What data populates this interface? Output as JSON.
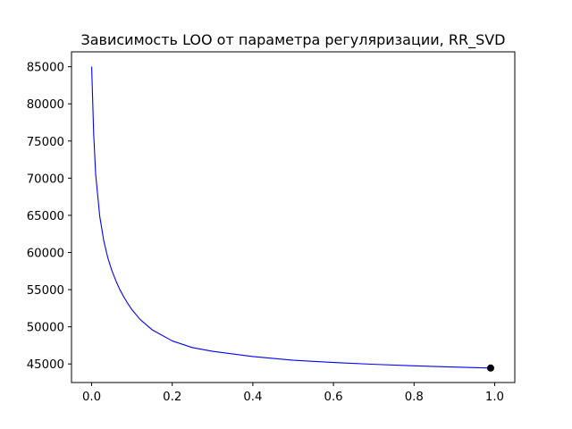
{
  "chart_data": {
    "type": "line",
    "title": "Зависимость LOO от параметра регуляризации, RR_SVD",
    "xlabel": "",
    "ylabel": "",
    "xlim": [
      -0.05,
      1.05
    ],
    "ylim": [
      42500,
      87000
    ],
    "x_ticks": [
      0.0,
      0.2,
      0.4,
      0.6,
      0.8,
      1.0
    ],
    "x_tick_labels": [
      "0.0",
      "0.2",
      "0.4",
      "0.6",
      "0.8",
      "1.0"
    ],
    "y_ticks": [
      45000,
      50000,
      55000,
      60000,
      65000,
      70000,
      75000,
      80000,
      85000
    ],
    "y_tick_labels": [
      "45000",
      "50000",
      "55000",
      "60000",
      "65000",
      "70000",
      "75000",
      "80000",
      "85000"
    ],
    "grid": false,
    "series": [
      {
        "color": "#0000ff",
        "x": [
          0.0,
          0.005,
          0.01,
          0.02,
          0.03,
          0.04,
          0.05,
          0.06,
          0.07,
          0.08,
          0.09,
          0.1,
          0.12,
          0.15,
          0.2,
          0.25,
          0.3,
          0.4,
          0.5,
          0.6,
          0.7,
          0.8,
          0.9,
          0.99
        ],
        "y": [
          85000,
          76000,
          70500,
          64900,
          61600,
          59300,
          57600,
          56200,
          55000,
          54000,
          53100,
          52300,
          51000,
          49600,
          48100,
          47200,
          46700,
          46000,
          45500,
          45200,
          44950,
          44750,
          44580,
          44450
        ]
      }
    ],
    "markers": [
      {
        "x": 0.99,
        "y": 44450,
        "color": "#000000"
      }
    ]
  }
}
